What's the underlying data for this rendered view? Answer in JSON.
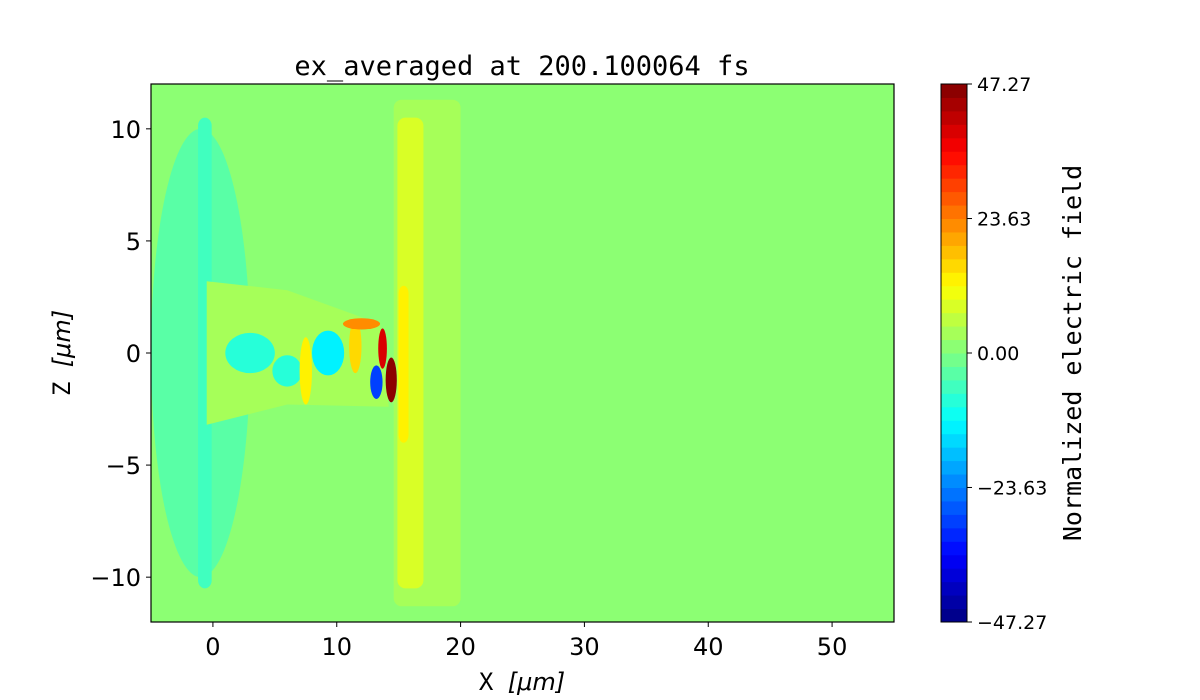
{
  "chart_data": {
    "type": "heatmap",
    "title": "ex_averaged at 200.100064 fs",
    "xlabel_prefix": "X ",
    "xlabel_unit": "[μm]",
    "ylabel_prefix": "Z ",
    "ylabel_unit": "[μm]",
    "xlim": [
      -5,
      55
    ],
    "ylim": [
      -12,
      12
    ],
    "xticks": [
      0,
      10,
      20,
      30,
      40,
      50
    ],
    "xtick_labels": [
      "0",
      "10",
      "20",
      "30",
      "40",
      "50"
    ],
    "yticks": [
      -10,
      -5,
      0,
      5,
      10
    ],
    "ytick_labels": [
      "−10",
      "−5",
      "0",
      "5",
      "10"
    ],
    "colormap": "jet",
    "clim": [
      -47.27,
      47.27
    ],
    "colorbar": {
      "label": "Normalized electric field",
      "ticks": [
        -47.27,
        -23.63,
        0.0,
        23.63,
        47.27
      ],
      "tick_labels": [
        "−47.27",
        "−23.63",
        "0.00",
        "23.63",
        "47.27"
      ],
      "levels": 40
    },
    "background_value": 0,
    "features": [
      {
        "name": "left-wavefront-fringe",
        "shape": "ellipse",
        "cx": -1,
        "cz": 0,
        "rx": 4,
        "rz": 10,
        "value": -3
      },
      {
        "name": "left-band",
        "shape": "rect",
        "x": [
          -1.2,
          -0.1
        ],
        "z": [
          -10.5,
          10.5
        ],
        "value": -5
      },
      {
        "name": "outer-shell",
        "shape": "rect",
        "x": [
          14.6,
          20
        ],
        "z": [
          -11.3,
          11.3
        ],
        "value": 3
      },
      {
        "name": "inner-shell",
        "shape": "rect",
        "x": [
          14.9,
          17
        ],
        "z": [
          -10.5,
          10.5
        ],
        "value": 8
      },
      {
        "name": "target-front",
        "shape": "rect",
        "x": [
          15,
          15.8
        ],
        "z": [
          -4,
          3
        ],
        "value": 14
      },
      {
        "name": "wake-cone",
        "shape": "polygon",
        "points": [
          [
            -0.5,
            3.2
          ],
          [
            6,
            2.8
          ],
          [
            13.5,
            1.3
          ],
          [
            14.2,
            -2.4
          ],
          [
            6,
            -2.3
          ],
          [
            -0.5,
            -3.2
          ]
        ],
        "value": 3
      },
      {
        "name": "wake-cyan-1",
        "shape": "ellipse",
        "cx": 3,
        "cz": 0,
        "rx": 2,
        "rz": 0.9,
        "value": -8
      },
      {
        "name": "wake-cyan-2",
        "shape": "ellipse",
        "cx": 9.3,
        "cz": 0,
        "rx": 1.3,
        "rz": 1,
        "value": -12
      },
      {
        "name": "wake-cyan-3",
        "shape": "ellipse",
        "cx": 6,
        "cz": -0.8,
        "rx": 1.2,
        "rz": 0.7,
        "value": -8
      },
      {
        "name": "wake-yellow-1",
        "shape": "ellipse",
        "cx": 7.5,
        "cz": -0.8,
        "rx": 0.5,
        "rz": 1.5,
        "value": 14
      },
      {
        "name": "wake-yellow-2",
        "shape": "ellipse",
        "cx": 11.5,
        "cz": 0.3,
        "rx": 0.5,
        "rz": 1.2,
        "value": 16
      },
      {
        "name": "upper-streak",
        "shape": "ellipse",
        "cx": 12,
        "cz": 1.3,
        "rx": 1.5,
        "rz": 0.25,
        "value": 22
      },
      {
        "name": "blue-spot",
        "shape": "ellipse",
        "cx": 13.2,
        "cz": -1.3,
        "rx": 0.5,
        "rz": 0.75,
        "value": -30
      },
      {
        "name": "red-streak",
        "shape": "ellipse",
        "cx": 13.7,
        "cz": 0.2,
        "rx": 0.35,
        "rz": 0.9,
        "value": 40
      },
      {
        "name": "red-spot",
        "shape": "ellipse",
        "cx": 14.4,
        "cz": -1.2,
        "rx": 0.45,
        "rz": 1.0,
        "value": 47
      }
    ]
  }
}
